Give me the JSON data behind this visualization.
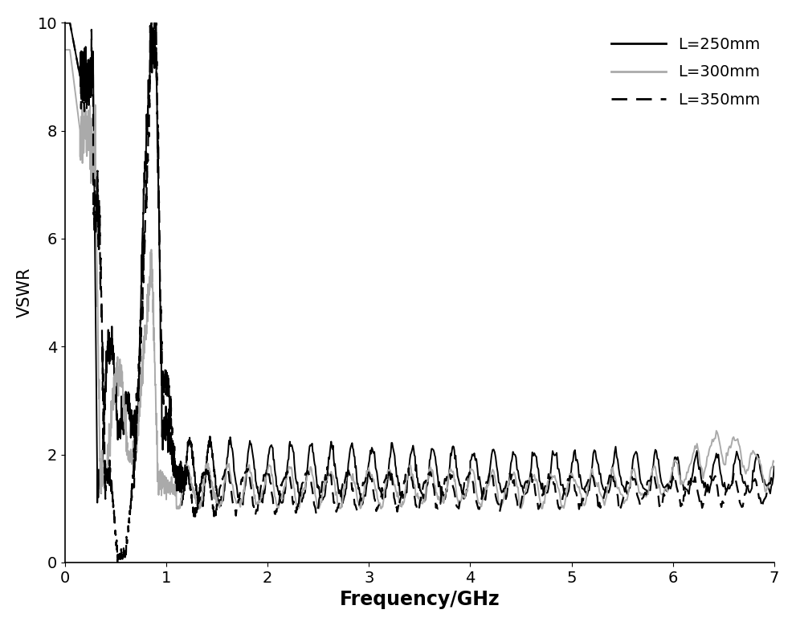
{
  "title": "",
  "xlabel": "Frequency/GHz",
  "ylabel": "VSWR",
  "xlim": [
    0,
    7
  ],
  "ylim": [
    0,
    10
  ],
  "xticks": [
    0,
    1,
    2,
    3,
    4,
    5,
    6,
    7
  ],
  "yticks": [
    0,
    2,
    4,
    6,
    8,
    10
  ],
  "legend": [
    {
      "label": "L=250mm",
      "color": "#000000",
      "linestyle": "solid",
      "linewidth": 1.4
    },
    {
      "label": "L=300mm",
      "color": "#aaaaaa",
      "linestyle": "solid",
      "linewidth": 1.4
    },
    {
      "label": "L=350mm",
      "color": "#000000",
      "linestyle": "dashed",
      "linewidth": 1.6
    }
  ],
  "background_color": "#ffffff",
  "xlabel_fontsize": 17,
  "ylabel_fontsize": 15,
  "tick_fontsize": 14,
  "legend_fontsize": 14
}
